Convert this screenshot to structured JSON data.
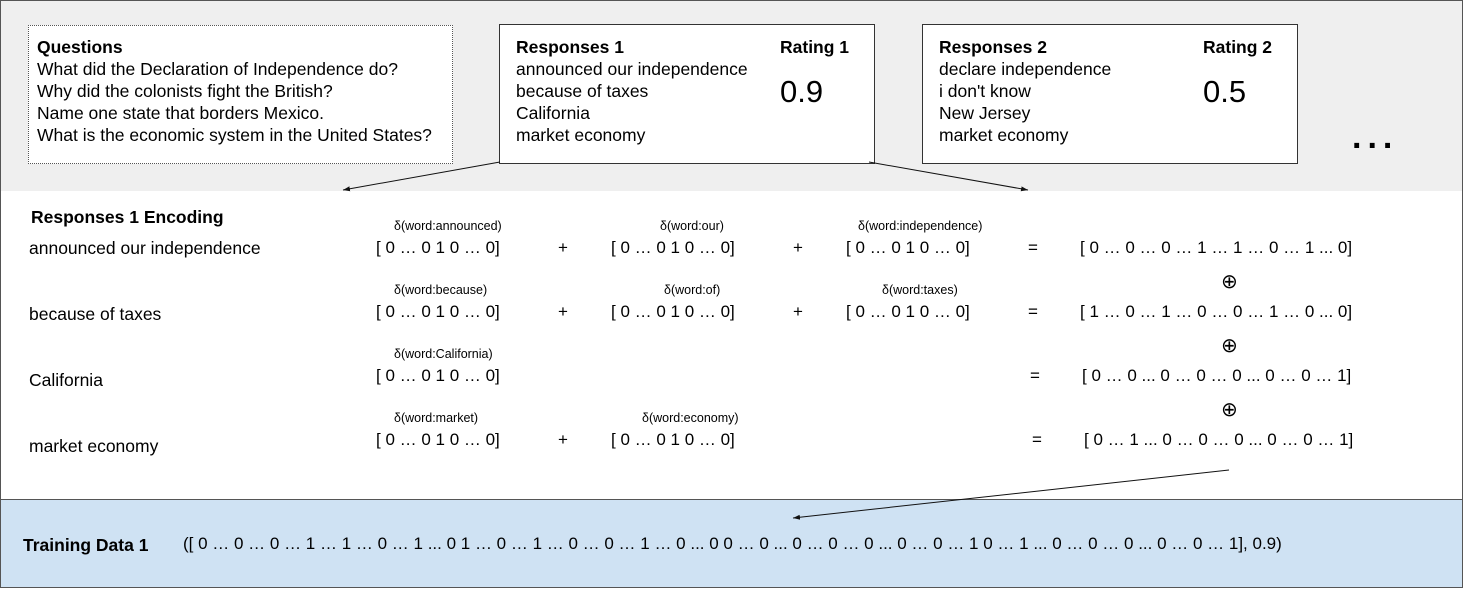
{
  "questions": {
    "title": "Questions",
    "items": [
      "What did the Declaration of Independence do?",
      "Why did the colonists fight the British?",
      "Name one state that borders Mexico.",
      "What is the economic system in the United States?"
    ]
  },
  "responses1": {
    "title": "Responses 1",
    "rating_title": "Rating 1",
    "rating": "0.9",
    "items": [
      "announced our independence",
      "because of taxes",
      "California",
      "market economy"
    ]
  },
  "responses2": {
    "title": "Responses 2",
    "rating_title": "Rating 2",
    "rating": "0.5",
    "items": [
      "declare independence",
      "i don't know",
      "New Jersey",
      "market economy"
    ]
  },
  "ellipsis": "...",
  "encoding": {
    "title": "Responses 1 Encoding",
    "rows": [
      {
        "label": "announced our independence",
        "terms": [
          {
            "delta": "δ(word:announced)",
            "vec": "[ 0 … 0 1 0 …  0]"
          },
          {
            "delta": "δ(word:our)",
            "vec": "[ 0 … 0 1 0 …  0]"
          },
          {
            "delta": "δ(word:independence)",
            "vec": "[ 0 … 0 1 0 …  0]"
          }
        ],
        "plus": [
          "+",
          "+"
        ],
        "equals": "=",
        "result": "[ 0 … 0 … 0 … 1 … 1 … 0 … 1 ... 0]"
      },
      {
        "label": "because of taxes",
        "terms": [
          {
            "delta": "δ(word:because)",
            "vec": "[ 0 … 0 1 0 …  0]"
          },
          {
            "delta": "δ(word:of)",
            "vec": "[ 0 … 0 1 0 …  0]"
          },
          {
            "delta": "δ(word:taxes)",
            "vec": "[ 0 … 0 1 0 …  0]"
          }
        ],
        "plus": [
          "+",
          "+"
        ],
        "equals": "=",
        "result": "[ 1 … 0 … 1 … 0 … 0 … 1 … 0 ... 0]"
      },
      {
        "label": "California",
        "terms": [
          {
            "delta": "δ(word:California)",
            "vec": "[ 0 … 0 1 0 …  0]"
          }
        ],
        "plus": [],
        "equals": "=",
        "result": "[ 0 … 0 ... 0 … 0 … 0 ... 0 … 0 … 1]"
      },
      {
        "label": "market economy",
        "terms": [
          {
            "delta": "δ(word:market)",
            "vec": "[ 0 … 0 1 0 …  0]"
          },
          {
            "delta": "δ(word:economy)",
            "vec": "[ 0 … 0 1 0 …  0]"
          }
        ],
        "plus": [
          "+"
        ],
        "equals": "=",
        "result": "[ 0 … 1 ... 0 … 0 … 0 ... 0 … 0 … 1]"
      }
    ],
    "concat_symbol": "⊕"
  },
  "training": {
    "title": "Training Data 1",
    "value": "([ 0 … 0 … 0 … 1 … 1 … 0 … 1 ... 0 1 … 0 … 1 … 0 … 0 … 1 … 0 ... 0 0 … 0 ... 0 … 0 … 0 ... 0 … 0 … 1 0 … 1 ... 0 … 0 … 0 ... 0 … 0 … 1], 0.9)"
  },
  "colors": {
    "top_bg": "#efefef",
    "bottom_bg": "#cfe2f3",
    "border": "#555555"
  }
}
